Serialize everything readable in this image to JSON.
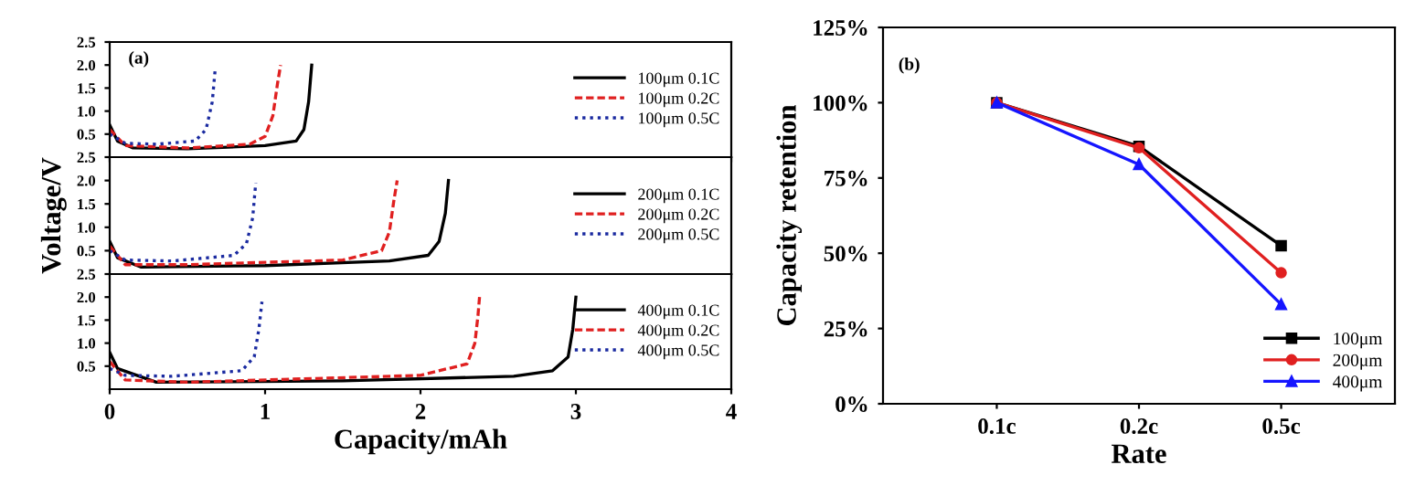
{
  "chart_data": [
    {
      "type": "line",
      "annotations": [
        "(a)"
      ],
      "xlim": [
        0,
        4
      ],
      "ylim": [
        0,
        2.5
      ],
      "xticks": [
        0,
        1,
        2,
        3,
        4
      ],
      "yticks": [
        0.5,
        {
          "value": 1,
          "label": "1.0"
        },
        1.5,
        {
          "value": 2,
          "label": "2.0"
        },
        2.5
      ],
      "tick_labels": "y",
      "legend": "right",
      "grid": false,
      "series": [
        {
          "name": "100μm 0.1C",
          "color": "#000000",
          "line_style": "solid",
          "x": [
            0,
            0.05,
            0.15,
            0.5,
            1.0,
            1.2,
            1.25,
            1.28,
            1.3
          ],
          "values": [
            0.7,
            0.35,
            0.2,
            0.18,
            0.25,
            0.35,
            0.6,
            1.2,
            2.0
          ]
        },
        {
          "name": "100μm 0.2C",
          "color": "#e02020",
          "line_style": "dashed",
          "x": [
            0,
            0.1,
            0.5,
            0.9,
            1.0,
            1.05,
            1.08,
            1.1
          ],
          "values": [
            0.6,
            0.25,
            0.2,
            0.28,
            0.45,
            0.9,
            1.6,
            2.0
          ]
        },
        {
          "name": "100μm 0.5C",
          "color": "#1a2aa0",
          "line_style": "dotted",
          "x": [
            0,
            0.1,
            0.3,
            0.55,
            0.62,
            0.66,
            0.68
          ],
          "values": [
            0.5,
            0.3,
            0.28,
            0.35,
            0.6,
            1.2,
            1.95
          ]
        }
      ]
    },
    {
      "type": "line",
      "ylabel": "Voltage/V",
      "xlim": [
        0,
        4
      ],
      "ylim": [
        0,
        2.5
      ],
      "xticks": [
        0,
        1,
        2,
        3,
        4
      ],
      "yticks": [
        0.5,
        {
          "value": 1,
          "label": "1.0"
        },
        1.5,
        {
          "value": 2,
          "label": "2.0"
        },
        2.5
      ],
      "tick_labels": "y",
      "legend": "right",
      "grid": false,
      "series": [
        {
          "name": "200μm 0.1C",
          "color": "#000000",
          "line_style": "solid",
          "x": [
            0,
            0.05,
            0.2,
            1.0,
            1.8,
            2.05,
            2.12,
            2.16,
            2.18
          ],
          "values": [
            0.7,
            0.35,
            0.15,
            0.18,
            0.28,
            0.4,
            0.7,
            1.3,
            2.0
          ]
        },
        {
          "name": "200μm 0.2C",
          "color": "#e02020",
          "line_style": "dashed",
          "x": [
            0,
            0.1,
            0.5,
            1.5,
            1.75,
            1.8,
            1.83,
            1.85
          ],
          "values": [
            0.6,
            0.2,
            0.2,
            0.3,
            0.5,
            0.9,
            1.6,
            2.0
          ]
        },
        {
          "name": "200μm 0.5C",
          "color": "#1a2aa0",
          "line_style": "dotted",
          "x": [
            0,
            0.1,
            0.4,
            0.8,
            0.88,
            0.92,
            0.94
          ],
          "values": [
            0.5,
            0.3,
            0.28,
            0.4,
            0.65,
            1.2,
            1.95
          ]
        }
      ]
    },
    {
      "type": "line",
      "xlabel": "Capacity/mAh",
      "xlim": [
        0,
        4
      ],
      "ylim": [
        0,
        2.5
      ],
      "xticks": [
        0,
        1,
        2,
        3,
        4
      ],
      "yticks": [
        0.5,
        {
          "value": 1,
          "label": "1.0"
        },
        1.5,
        {
          "value": 2,
          "label": "2.0"
        },
        2.5
      ],
      "legend": "right",
      "grid": false,
      "series": [
        {
          "name": "400μm 0.1C",
          "color": "#000000",
          "line_style": "solid",
          "x": [
            0,
            0.05,
            0.3,
            1.5,
            2.6,
            2.85,
            2.95,
            2.98,
            3.0
          ],
          "values": [
            0.8,
            0.45,
            0.15,
            0.18,
            0.28,
            0.4,
            0.7,
            1.3,
            2.0
          ]
        },
        {
          "name": "400μm 0.2C",
          "color": "#e02020",
          "line_style": "dashed",
          "x": [
            0,
            0.1,
            0.5,
            2.0,
            2.3,
            2.35,
            2.37,
            2.38
          ],
          "values": [
            0.6,
            0.2,
            0.15,
            0.3,
            0.55,
            1.0,
            1.6,
            2.0
          ]
        },
        {
          "name": "400μm 0.5C",
          "color": "#1a2aa0",
          "line_style": "dotted",
          "x": [
            0,
            0.1,
            0.4,
            0.85,
            0.93,
            0.96,
            0.98
          ],
          "values": [
            0.45,
            0.3,
            0.28,
            0.4,
            0.7,
            1.3,
            1.9
          ]
        }
      ]
    },
    {
      "type": "line",
      "annotations": [
        "(b)"
      ],
      "xlabel": "Rate",
      "ylabel": "Capacity retention",
      "categories": [
        "0.1c",
        "0.2c",
        "0.5c"
      ],
      "ylim": [
        0,
        125
      ],
      "yticks": [
        {
          "value": 0,
          "label": "0%"
        },
        {
          "value": 25,
          "label": "25%"
        },
        {
          "value": 50,
          "label": "50%"
        },
        {
          "value": 75,
          "label": "75%"
        },
        {
          "value": 100,
          "label": "100%"
        },
        {
          "value": 125,
          "label": "125%"
        }
      ],
      "legend": "bottom right",
      "grid": false,
      "series": [
        {
          "name": "100μm",
          "color": "#000000",
          "marker": "square",
          "values": [
            100,
            85.5,
            52.5
          ]
        },
        {
          "name": "200μm",
          "color": "#e02020",
          "marker": "circle",
          "values": [
            100,
            85,
            43.5
          ]
        },
        {
          "name": "400μm",
          "color": "#1515ff",
          "marker": "triangle",
          "values": [
            100,
            79.5,
            33
          ]
        }
      ]
    }
  ]
}
